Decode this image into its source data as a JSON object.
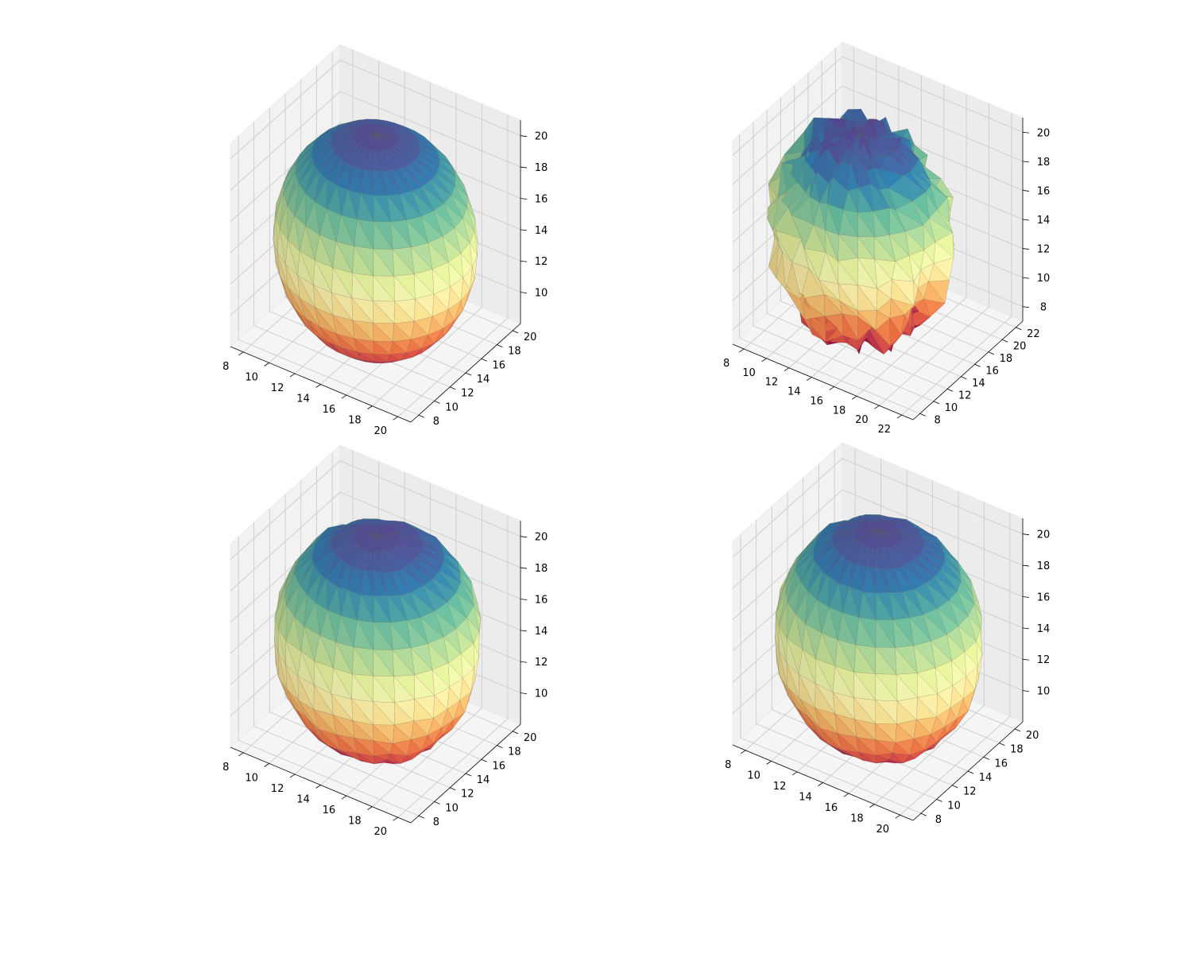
{
  "figure": {
    "background": "#ffffff"
  },
  "colormap": {
    "name": "Spectral_r",
    "top_color": "#5e4fa2",
    "bottom_color": "#9e0142"
  },
  "chart_data": [
    {
      "type": "surface3d",
      "panel": "top-left",
      "xlim": [
        7,
        21
      ],
      "ylim": [
        7,
        21
      ],
      "zlim": [
        8,
        21
      ],
      "x_ticks": [
        "8",
        "10",
        "12",
        "14",
        "16",
        "18",
        "20"
      ],
      "y_ticks": [
        "8",
        "10",
        "12",
        "14",
        "16",
        "18",
        "20"
      ],
      "z_ticks": [
        "10",
        "12",
        "14",
        "16",
        "18",
        "20"
      ],
      "surface": {
        "shape": "sphere",
        "center": [
          14,
          14,
          14
        ],
        "radius": 6.8,
        "noise": 0,
        "bulge": 0
      }
    },
    {
      "type": "surface3d",
      "panel": "top-right",
      "xlim": [
        7,
        23
      ],
      "ylim": [
        7,
        23
      ],
      "zlim": [
        7,
        21
      ],
      "x_ticks": [
        "8",
        "10",
        "12",
        "14",
        "16",
        "18",
        "20",
        "22"
      ],
      "y_ticks": [
        "8",
        "10",
        "12",
        "14",
        "16",
        "18",
        "20",
        "22"
      ],
      "z_ticks": [
        "8",
        "10",
        "12",
        "14",
        "16",
        "18",
        "20"
      ],
      "surface": {
        "shape": "sphere",
        "center": [
          14,
          14,
          14
        ],
        "radius": 6.8,
        "noise": 0.9,
        "bulge": 0
      }
    },
    {
      "type": "surface3d",
      "panel": "bottom-left",
      "xlim": [
        7,
        21
      ],
      "ylim": [
        7,
        21
      ],
      "zlim": [
        8,
        21
      ],
      "x_ticks": [
        "8",
        "10",
        "12",
        "14",
        "16",
        "18",
        "20"
      ],
      "y_ticks": [
        "8",
        "10",
        "12",
        "14",
        "16",
        "18",
        "20"
      ],
      "z_ticks": [
        "10",
        "12",
        "14",
        "16",
        "18",
        "20"
      ],
      "surface": {
        "shape": "sphere",
        "center": [
          14,
          14,
          14
        ],
        "radius": 6.8,
        "noise": 0.15,
        "bulge": 0.6
      }
    },
    {
      "type": "surface3d",
      "panel": "bottom-right",
      "xlim": [
        7,
        21
      ],
      "ylim": [
        7,
        21
      ],
      "zlim": [
        8,
        21
      ],
      "x_ticks": [
        "8",
        "10",
        "12",
        "14",
        "16",
        "18",
        "20"
      ],
      "y_ticks": [
        "8",
        "10",
        "12",
        "14",
        "16",
        "18",
        "20"
      ],
      "z_ticks": [
        "10",
        "12",
        "14",
        "16",
        "18",
        "20"
      ],
      "surface": {
        "shape": "sphere",
        "center": [
          14,
          14,
          14
        ],
        "radius": 6.9,
        "noise": 0.15,
        "bulge": 0.25
      }
    }
  ]
}
